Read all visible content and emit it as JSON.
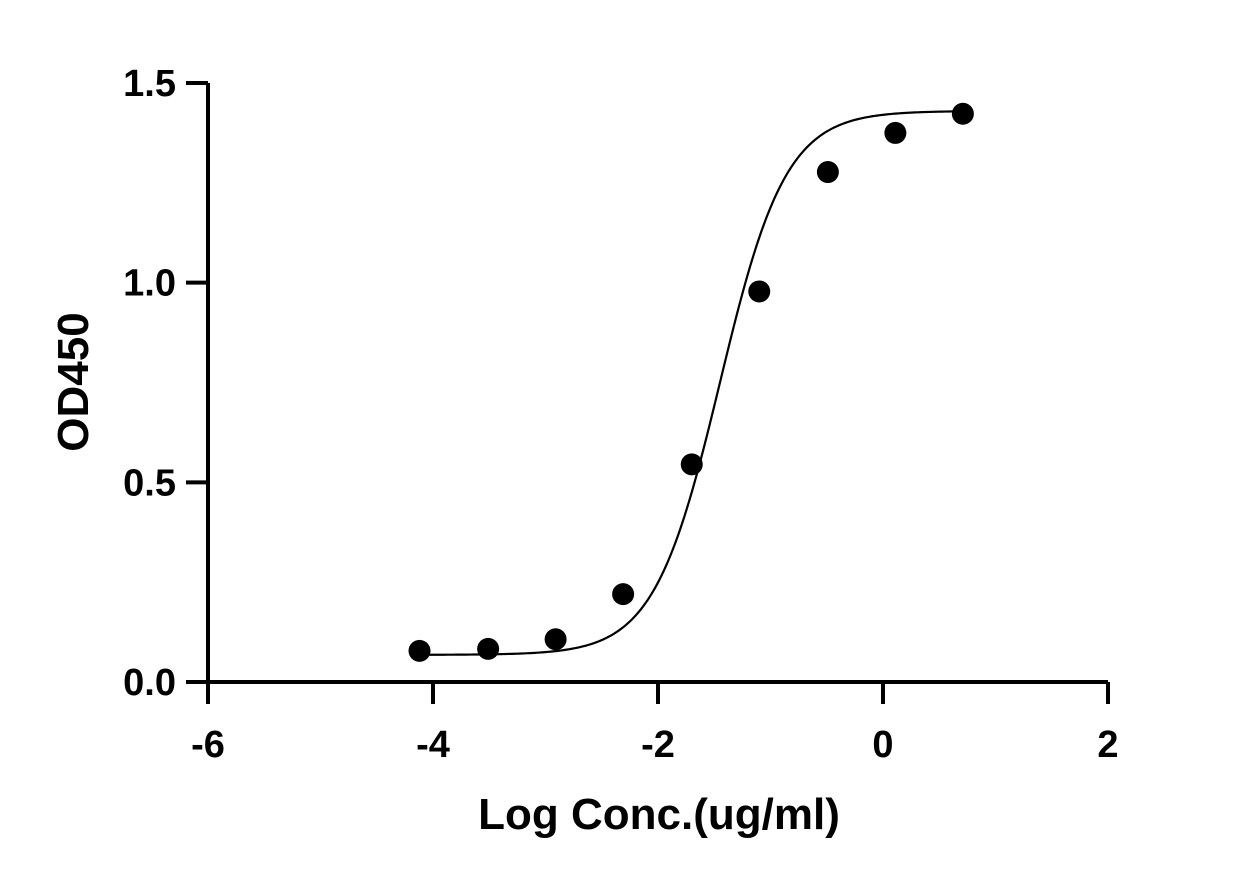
{
  "chart_data": {
    "type": "scatter",
    "xlabel": "Log Conc.(ug/ml)",
    "ylabel": "OD450",
    "xlim": [
      -6,
      2
    ],
    "ylim": [
      0,
      1.5
    ],
    "x_ticks": [
      -6,
      -4,
      -2,
      0,
      2
    ],
    "x_tick_labels": [
      "-6",
      "-4",
      "-2",
      "0",
      "2"
    ],
    "y_ticks": [
      0,
      0.5,
      1.0,
      1.5
    ],
    "y_tick_labels": [
      "0.0",
      "0.5",
      "1.0",
      "1.5"
    ],
    "grid": false,
    "series": [
      {
        "x": [
          -4.12,
          -3.51,
          -2.91,
          -2.31,
          -1.7,
          -1.1,
          -0.49,
          0.11,
          0.71
        ],
        "y": [
          0.078,
          0.083,
          0.107,
          0.22,
          0.545,
          0.978,
          1.277,
          1.375,
          1.423
        ]
      }
    ],
    "fit_curve": {
      "type": "4PL",
      "bottom": 0.068,
      "top": 1.43,
      "log_ec50": -1.45,
      "hill_slope": 1.48,
      "x_range": [
        -4.12,
        0.71
      ]
    },
    "colors": {
      "marks": "#000000",
      "background": "#ffffff"
    }
  }
}
